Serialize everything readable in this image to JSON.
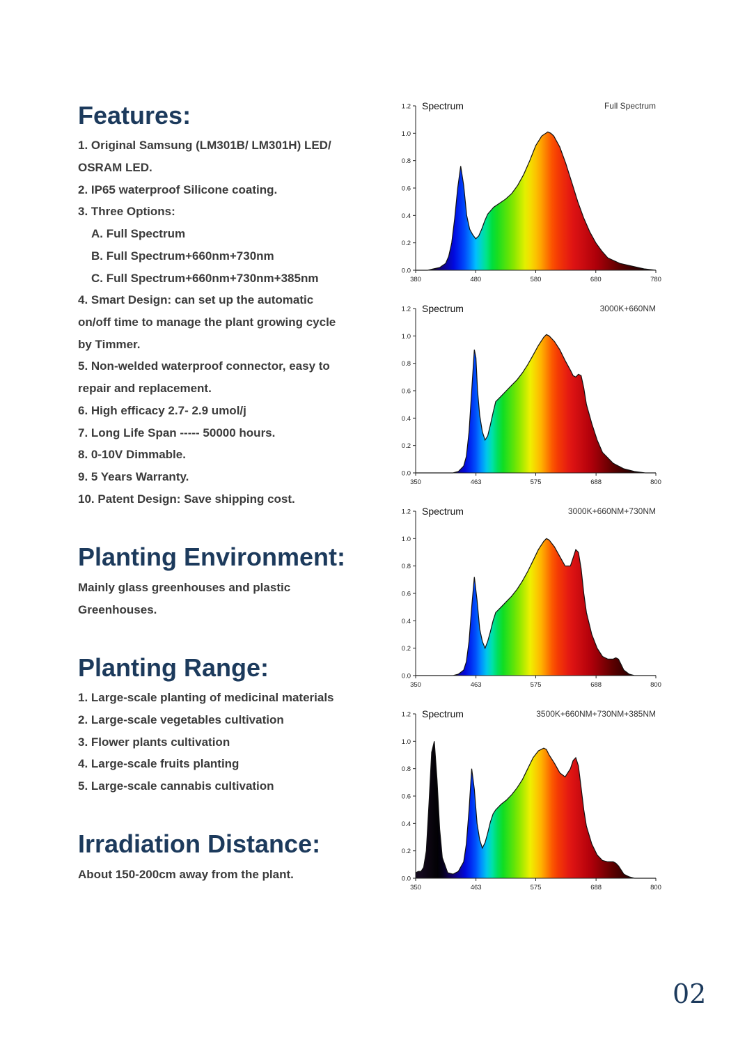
{
  "features": {
    "title": "Features:",
    "lines": [
      "1. Original Samsung (LM301B/ LM301H) LED/",
      "OSRAM LED.",
      "2. IP65 waterproof Silicone coating.",
      "3. Three Options:",
      "A. Full Spectrum",
      "B. Full Spectrum+660nm+730nm",
      "C. Full Spectrum+660nm+730nm+385nm",
      "4. Smart Design: can set up the automatic",
      "on/off time to manage the plant growing cycle",
      "by Timmer.",
      "5. Non-welded waterproof connector, easy to",
      "repair and replacement.",
      "6. High efficacy 2.7- 2.9 umol/j",
      "7. Long Life Span ----- 50000 hours.",
      "8. 0-10V Dimmable.",
      "9. 5 Years Warranty.",
      "10. Patent Design: Save shipping cost."
    ]
  },
  "environment": {
    "title": "Planting Environment:",
    "lines": [
      "Mainly glass greenhouses and plastic",
      "Greenhouses."
    ]
  },
  "range": {
    "title": "Planting Range:",
    "lines": [
      "1. Large-scale planting of medicinal materials",
      "2. Large-scale vegetables cultivation",
      "3. Flower plants cultivation",
      "4. Large-scale fruits planting",
      "5. Large-scale cannabis cultivation"
    ]
  },
  "distance": {
    "title": "Irradiation Distance:",
    "lines": [
      "About 150-200cm away from the plant."
    ]
  },
  "page_number": "02",
  "chart_data": [
    {
      "type": "area",
      "title": "Spectrum",
      "subtitle": "Full Spectrum",
      "xlim": [
        380,
        780
      ],
      "ylim": [
        0,
        1.2
      ],
      "xticks": [
        380,
        480,
        580,
        680,
        780
      ],
      "yticks": [
        "0.0",
        "0.2",
        "0.4",
        "0.6",
        "0.8",
        "1.0",
        "1.2"
      ],
      "series": [
        {
          "x": [
            380,
            400,
            410,
            420,
            430,
            435,
            440,
            445,
            450,
            455,
            460,
            465,
            470,
            475,
            480,
            485,
            490,
            495,
            500,
            510,
            520,
            530,
            540,
            550,
            560,
            570,
            580,
            590,
            600,
            605,
            610,
            620,
            630,
            640,
            650,
            660,
            670,
            680,
            690,
            700,
            720,
            740,
            760,
            780
          ],
          "y": [
            0.0,
            0.0,
            0.01,
            0.02,
            0.05,
            0.1,
            0.2,
            0.38,
            0.6,
            0.76,
            0.62,
            0.4,
            0.3,
            0.26,
            0.23,
            0.25,
            0.3,
            0.36,
            0.41,
            0.46,
            0.49,
            0.52,
            0.56,
            0.62,
            0.7,
            0.8,
            0.91,
            0.98,
            1.01,
            1.0,
            0.98,
            0.9,
            0.78,
            0.64,
            0.5,
            0.38,
            0.28,
            0.2,
            0.14,
            0.09,
            0.05,
            0.03,
            0.01,
            0.0
          ]
        }
      ]
    },
    {
      "type": "area",
      "title": "Spectrum",
      "subtitle": "3000K+660NM",
      "xlim": [
        350,
        800
      ],
      "ylim": [
        0,
        1.2
      ],
      "xticks": [
        350,
        463,
        575,
        688,
        800
      ],
      "yticks": [
        "0.0",
        "0.2",
        "0.4",
        "0.6",
        "0.8",
        "1.0",
        "1.2"
      ],
      "series": [
        {
          "x": [
            350,
            400,
            420,
            430,
            440,
            445,
            450,
            455,
            460,
            463,
            466,
            470,
            475,
            480,
            485,
            490,
            495,
            500,
            510,
            520,
            530,
            540,
            550,
            560,
            570,
            580,
            590,
            595,
            600,
            610,
            620,
            630,
            640,
            645,
            650,
            655,
            660,
            665,
            670,
            680,
            690,
            700,
            720,
            740,
            760,
            780,
            800
          ],
          "y": [
            0.0,
            0.0,
            0.0,
            0.01,
            0.05,
            0.12,
            0.3,
            0.6,
            0.9,
            0.84,
            0.6,
            0.42,
            0.3,
            0.24,
            0.27,
            0.35,
            0.44,
            0.52,
            0.56,
            0.6,
            0.64,
            0.68,
            0.73,
            0.79,
            0.86,
            0.93,
            0.99,
            1.01,
            1.0,
            0.96,
            0.9,
            0.82,
            0.75,
            0.71,
            0.7,
            0.72,
            0.71,
            0.62,
            0.5,
            0.36,
            0.24,
            0.15,
            0.07,
            0.03,
            0.01,
            0.0,
            0.0
          ]
        }
      ]
    },
    {
      "type": "area",
      "title": "Spectrum",
      "subtitle": "3000K+660NM+730NM",
      "xlim": [
        350,
        800
      ],
      "ylim": [
        0,
        1.2
      ],
      "xticks": [
        350,
        463,
        575,
        688,
        800
      ],
      "yticks": [
        "0.0",
        "0.2",
        "0.4",
        "0.6",
        "0.8",
        "1.0",
        "1.2"
      ],
      "series": [
        {
          "x": [
            350,
            420,
            430,
            440,
            445,
            450,
            455,
            460,
            465,
            470,
            475,
            480,
            485,
            490,
            495,
            500,
            510,
            520,
            530,
            540,
            550,
            560,
            570,
            580,
            590,
            595,
            600,
            610,
            620,
            630,
            640,
            645,
            650,
            655,
            660,
            665,
            670,
            680,
            690,
            700,
            710,
            720,
            725,
            730,
            735,
            740,
            750,
            760,
            780,
            800
          ],
          "y": [
            0.0,
            0.0,
            0.01,
            0.04,
            0.1,
            0.25,
            0.5,
            0.72,
            0.55,
            0.34,
            0.25,
            0.2,
            0.25,
            0.32,
            0.4,
            0.46,
            0.5,
            0.54,
            0.58,
            0.63,
            0.69,
            0.76,
            0.84,
            0.92,
            0.98,
            1.0,
            0.99,
            0.94,
            0.87,
            0.8,
            0.8,
            0.86,
            0.92,
            0.9,
            0.78,
            0.6,
            0.46,
            0.3,
            0.2,
            0.14,
            0.12,
            0.12,
            0.13,
            0.12,
            0.08,
            0.04,
            0.01,
            0.0,
            0.0,
            0.0
          ]
        }
      ]
    },
    {
      "type": "area",
      "title": "Spectrum",
      "subtitle": "3500K+660NM+730NM+385NM",
      "xlim": [
        350,
        800
      ],
      "ylim": [
        0,
        1.2
      ],
      "xticks": [
        350,
        463,
        575,
        688,
        800
      ],
      "yticks": [
        "0.0",
        "0.2",
        "0.4",
        "0.6",
        "0.8",
        "1.0",
        "1.2"
      ],
      "series": [
        {
          "x": [
            350,
            355,
            360,
            365,
            370,
            375,
            380,
            385,
            390,
            395,
            400,
            410,
            420,
            430,
            440,
            445,
            450,
            455,
            460,
            465,
            470,
            475,
            480,
            485,
            490,
            495,
            500,
            510,
            520,
            530,
            540,
            550,
            560,
            570,
            580,
            590,
            595,
            600,
            610,
            620,
            630,
            640,
            645,
            650,
            655,
            660,
            665,
            670,
            680,
            690,
            700,
            710,
            720,
            725,
            730,
            735,
            740,
            750,
            760,
            780,
            800
          ],
          "y": [
            0.04,
            0.05,
            0.05,
            0.08,
            0.2,
            0.55,
            0.92,
            1.0,
            0.72,
            0.36,
            0.15,
            0.04,
            0.03,
            0.05,
            0.12,
            0.25,
            0.5,
            0.8,
            0.65,
            0.4,
            0.28,
            0.22,
            0.26,
            0.33,
            0.41,
            0.47,
            0.5,
            0.54,
            0.57,
            0.61,
            0.66,
            0.72,
            0.8,
            0.88,
            0.93,
            0.95,
            0.94,
            0.9,
            0.84,
            0.77,
            0.74,
            0.8,
            0.86,
            0.88,
            0.82,
            0.66,
            0.5,
            0.38,
            0.25,
            0.17,
            0.13,
            0.12,
            0.12,
            0.11,
            0.09,
            0.06,
            0.03,
            0.01,
            0.0,
            0.0,
            0.0
          ]
        }
      ]
    }
  ]
}
